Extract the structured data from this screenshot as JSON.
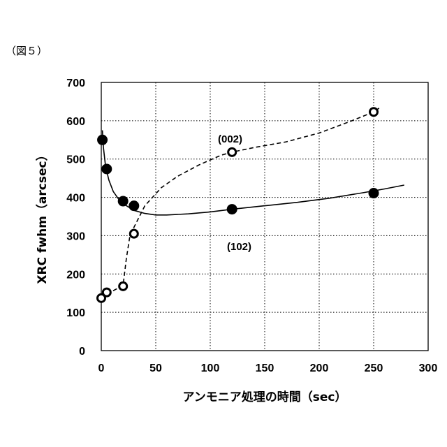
{
  "figure_label": "（図５）",
  "chart_data": {
    "type": "scatter",
    "xlabel": "アンモニア処理の時間（sec）",
    "ylabel": "XRC fwhm（arcsec）",
    "xlim": [
      0,
      300
    ],
    "ylim": [
      0,
      700
    ],
    "xticks": [
      0,
      50,
      100,
      150,
      200,
      250,
      300
    ],
    "yticks": [
      0,
      100,
      200,
      300,
      400,
      500,
      600,
      700
    ],
    "grid": "dotted",
    "series": [
      {
        "name": "(002)",
        "marker": "open-circle",
        "line": "dashed",
        "x": [
          0,
          5,
          20,
          30,
          120,
          250
        ],
        "y": [
          137,
          152,
          168,
          305,
          518,
          623
        ],
        "curve_x": [
          0,
          10,
          20,
          23,
          26,
          30,
          40,
          55,
          70,
          90,
          110,
          120,
          140,
          170,
          200,
          230,
          250,
          255
        ],
        "curve_y": [
          137,
          155,
          170,
          240,
          295,
          322,
          378,
          425,
          455,
          485,
          510,
          518,
          530,
          545,
          568,
          600,
          623,
          633
        ]
      },
      {
        "name": "(102)",
        "marker": "filled-circle",
        "line": "solid",
        "x": [
          1,
          5,
          20,
          30,
          120,
          250
        ],
        "y": [
          550,
          474,
          390,
          378,
          369,
          411
        ],
        "curve_x": [
          1,
          2,
          4,
          7,
          11,
          16,
          22,
          30,
          40,
          50,
          60,
          80,
          100,
          120,
          150,
          180,
          210,
          240,
          260,
          278
        ],
        "curve_y": [
          575,
          530,
          480,
          445,
          415,
          395,
          380,
          366,
          358,
          354,
          354,
          357,
          362,
          369,
          378,
          387,
          398,
          412,
          422,
          432
        ]
      }
    ]
  }
}
